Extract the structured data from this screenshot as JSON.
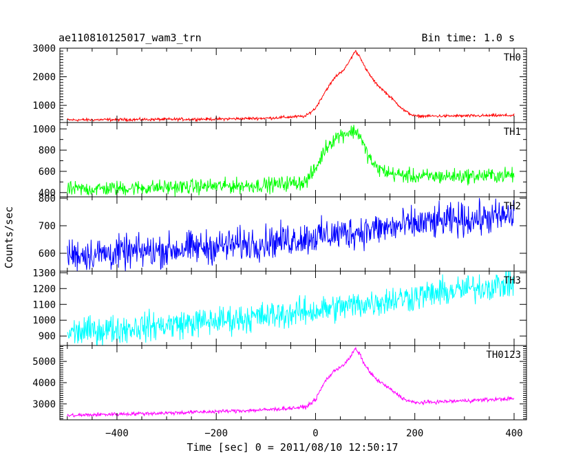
{
  "chart_data": {
    "type": "line",
    "title": "ae110810125017_wam3_trn",
    "subtitle": "Bin time: 1.0 s",
    "xlabel": "Time [sec] 0 = 2011/08/10 12:50:17",
    "ylabel": "Counts/sec",
    "xlim": [
      -515,
      425
    ],
    "xticks": [
      "−400",
      "−200",
      "0",
      "200",
      "400"
    ],
    "xtick_values": [
      -400,
      -200,
      0,
      200,
      400
    ],
    "grid": false,
    "panels": [
      {
        "name": "TH0",
        "color": "#ff0000",
        "ylim": [
          400,
          3000
        ],
        "yticks": [
          "1000",
          "2000",
          "3000"
        ],
        "ytick_values": [
          1000,
          2000,
          3000
        ],
        "x": [
          -500,
          -400,
          -300,
          -200,
          -100,
          -20,
          0,
          20,
          40,
          60,
          70,
          80,
          90,
          100,
          120,
          150,
          180,
          200,
          300,
          400
        ],
        "y": [
          490,
          500,
          510,
          520,
          550,
          620,
          900,
          1500,
          2000,
          2300,
          2600,
          2900,
          2700,
          2300,
          1800,
          1300,
          800,
          620,
          630,
          650
        ],
        "noise": 25
      },
      {
        "name": "TH1",
        "color": "#00ff00",
        "ylim": [
          360,
          1060
        ],
        "yticks": [
          "400",
          "600",
          "800",
          "1000"
        ],
        "ytick_values": [
          400,
          600,
          800,
          1000
        ],
        "x": [
          -500,
          -400,
          -300,
          -200,
          -100,
          -20,
          0,
          20,
          40,
          60,
          80,
          90,
          100,
          120,
          150,
          200,
          300,
          400
        ],
        "y": [
          430,
          440,
          450,
          460,
          470,
          500,
          620,
          820,
          920,
          960,
          980,
          940,
          800,
          640,
          580,
          550,
          555,
          565
        ],
        "noise": 35
      },
      {
        "name": "TH2",
        "color": "#0000ff",
        "ylim": [
          535,
          805
        ],
        "yticks": [
          "600",
          "700",
          "800"
        ],
        "ytick_values": [
          600,
          700,
          800
        ],
        "x": [
          -500,
          -400,
          -300,
          -200,
          -100,
          0,
          100,
          200,
          300,
          400
        ],
        "y": [
          595,
          600,
          612,
          625,
          640,
          660,
          682,
          705,
          722,
          735
        ],
        "noise": 30
      },
      {
        "name": "TH3",
        "color": "#00ffff",
        "ylim": [
          840,
          1310
        ],
        "yticks": [
          "900",
          "1000",
          "1100",
          "1200",
          "1300"
        ],
        "ytick_values": [
          900,
          1000,
          1100,
          1200,
          1300
        ],
        "x": [
          -500,
          -400,
          -300,
          -200,
          -100,
          0,
          100,
          200,
          300,
          400
        ],
        "y": [
          920,
          945,
          970,
          995,
          1025,
          1060,
          1105,
          1150,
          1195,
          1235
        ],
        "noise": 45
      },
      {
        "name": "TH0123",
        "color": "#ff00ff",
        "ylim": [
          2250,
          5750
        ],
        "yticks": [
          "3000",
          "4000",
          "5000"
        ],
        "ytick_values": [
          3000,
          4000,
          5000
        ],
        "x": [
          -500,
          -400,
          -300,
          -200,
          -100,
          -20,
          0,
          20,
          40,
          60,
          70,
          80,
          90,
          100,
          120,
          150,
          180,
          200,
          300,
          400
        ],
        "y": [
          2450,
          2520,
          2570,
          2640,
          2720,
          2850,
          3200,
          4100,
          4600,
          4900,
          5200,
          5600,
          5300,
          4800,
          4200,
          3700,
          3200,
          3050,
          3150,
          3250
        ],
        "noise": 45
      }
    ]
  }
}
